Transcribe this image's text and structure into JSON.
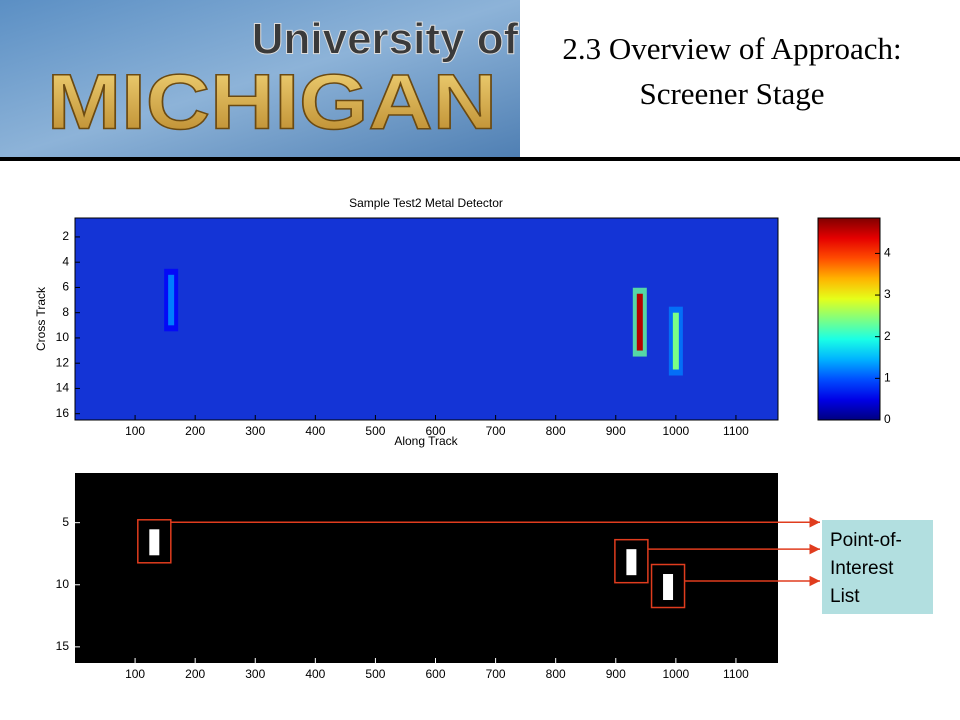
{
  "header": {
    "logo_line1": "University of",
    "logo_line2": "MICHIGAN",
    "title_lines": [
      "2.3 Overview of Approach:",
      "Screener Stage"
    ]
  },
  "heatmap": {
    "title": "Sample Test2 Metal Detector",
    "xlabel": "Along Track",
    "ylabel": "Cross Track",
    "xlim": [
      0,
      1170
    ],
    "ylim": [
      0.5,
      16.5
    ],
    "xticks": [
      100,
      200,
      300,
      400,
      500,
      600,
      700,
      800,
      900,
      1000,
      1100
    ],
    "yticks": [
      2,
      4,
      6,
      8,
      10,
      12,
      14,
      16
    ],
    "clim": [
      0,
      4.85
    ],
    "cticks": [
      0,
      1,
      2,
      3,
      4
    ],
    "spots": [
      {
        "x": 160,
        "y": [
          5,
          9
        ],
        "value": 1.2
      },
      {
        "x": 940,
        "y": [
          6.5,
          11
        ],
        "value": 4.6
      },
      {
        "x": 1000,
        "y": [
          8,
          12.5
        ],
        "value": 2.4
      }
    ]
  },
  "binary_map": {
    "xlim": [
      0,
      1170
    ],
    "ylim": [
      1,
      16.3
    ],
    "xticks": [
      100,
      200,
      300,
      400,
      500,
      600,
      700,
      800,
      900,
      1000,
      1100
    ],
    "yticks": [
      5,
      10,
      15
    ],
    "detections": [
      {
        "x": 132,
        "y": 6.5
      },
      {
        "x": 926,
        "y": 8.1
      },
      {
        "x": 987,
        "y": 10.1
      }
    ]
  },
  "callout": {
    "lines": [
      "Point-of-",
      "Interest",
      "List"
    ]
  }
}
